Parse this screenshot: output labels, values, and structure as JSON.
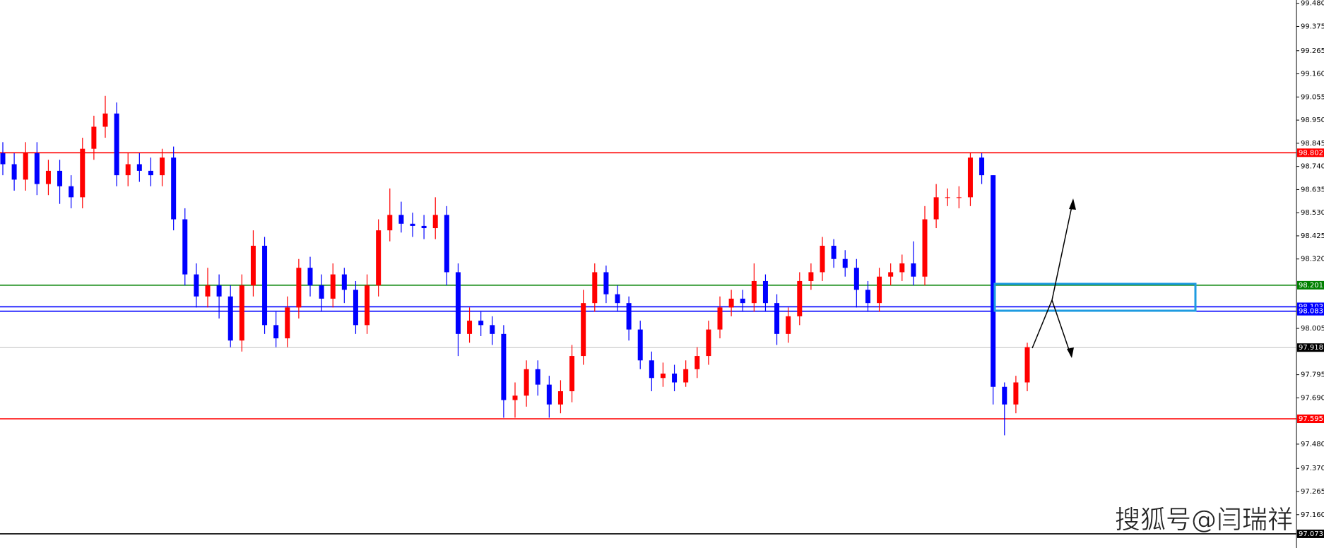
{
  "chart_data": {
    "type": "candlestick",
    "watermark": "搜狐号@闫瑞祥",
    "up_color": "#ff0000",
    "down_color": "#0000ff",
    "ylim": [
      97.06,
      99.495
    ],
    "yticks": [
      {
        "value": 99.48,
        "label": "99.480"
      },
      99.375,
      99.265,
      {
        "value": 99.16,
        "label": "99.160"
      },
      99.055,
      {
        "value": 98.95,
        "label": "98.950"
      },
      98.845,
      {
        "value": 98.74,
        "label": "98.740"
      },
      98.635,
      {
        "value": 98.53,
        "label": "98.530"
      },
      98.425,
      {
        "value": 98.32,
        "label": "98.320"
      },
      98.005,
      97.795,
      {
        "value": 97.69,
        "label": "97.690"
      },
      {
        "value": 97.48,
        "label": "97.480"
      },
      {
        "value": 97.37,
        "label": "97.370"
      },
      97.265,
      {
        "value": 97.16,
        "label": "97.160"
      }
    ],
    "levels": [
      {
        "value": 98.802,
        "color": "#ff0000"
      },
      {
        "value": 98.201,
        "color": "#008000"
      },
      {
        "value": 98.103,
        "color": "#0000ff"
      },
      {
        "value": 98.083,
        "color": "#0000ff"
      },
      {
        "value": 97.918,
        "color": "#c0c0c0"
      },
      {
        "value": 97.595,
        "color": "#ff0000"
      },
      {
        "value": 97.073,
        "color": "#000000"
      }
    ],
    "open": [
      98.8,
      98.75,
      98.68,
      98.8,
      98.66,
      98.72,
      98.65,
      98.6,
      98.82,
      98.92,
      98.98,
      98.7,
      98.75,
      98.72,
      98.7,
      98.78,
      98.5,
      98.25,
      98.15,
      98.2,
      98.15,
      97.95,
      98.2,
      98.38,
      98.02,
      97.96,
      98.1,
      98.28,
      98.2,
      98.14,
      98.25,
      98.18,
      98.02,
      98.2,
      98.45,
      98.52,
      98.48,
      98.47,
      98.46,
      98.52,
      98.26,
      97.98,
      98.04,
      98.02,
      97.98,
      97.68,
      97.7,
      97.82,
      97.75,
      97.66,
      97.72,
      97.88,
      98.12,
      98.26,
      98.16,
      98.12,
      98.0,
      97.86,
      97.78,
      97.8,
      97.76,
      97.82,
      97.88,
      98.0,
      98.1,
      98.14,
      98.12,
      98.22,
      98.12,
      97.98,
      98.06,
      98.22,
      98.26,
      98.38,
      98.32,
      98.28,
      98.18,
      98.12,
      98.24,
      98.26,
      98.3,
      98.24,
      98.5,
      98.6,
      98.6,
      98.6,
      98.78,
      98.7,
      97.74,
      97.66,
      97.76
    ],
    "high": [
      98.85,
      98.8,
      98.85,
      98.85,
      98.77,
      98.77,
      98.7,
      98.87,
      98.97,
      99.06,
      99.03,
      98.8,
      98.8,
      98.78,
      98.82,
      98.83,
      98.55,
      98.3,
      98.28,
      98.25,
      98.2,
      98.25,
      98.45,
      98.42,
      98.08,
      98.15,
      98.32,
      98.33,
      98.25,
      98.3,
      98.28,
      98.22,
      98.25,
      98.5,
      98.64,
      98.58,
      98.53,
      98.52,
      98.6,
      98.56,
      98.3,
      98.1,
      98.08,
      98.06,
      98.02,
      97.76,
      97.86,
      97.86,
      97.79,
      97.77,
      97.93,
      98.18,
      98.3,
      98.29,
      98.2,
      98.15,
      98.04,
      97.9,
      97.85,
      97.84,
      97.86,
      97.92,
      98.04,
      98.15,
      98.18,
      98.18,
      98.3,
      98.25,
      98.16,
      98.1,
      98.26,
      98.3,
      98.42,
      98.41,
      98.36,
      98.32,
      98.22,
      98.28,
      98.3,
      98.34,
      98.4,
      98.56,
      98.66,
      98.64,
      98.65,
      98.8,
      98.8,
      98.7,
      97.76,
      97.79,
      97.94
    ],
    "low": [
      98.7,
      98.63,
      98.63,
      98.61,
      98.61,
      98.57,
      98.55,
      98.55,
      98.77,
      98.87,
      98.65,
      98.65,
      98.67,
      98.65,
      98.65,
      98.45,
      98.2,
      98.1,
      98.1,
      98.05,
      97.92,
      97.9,
      98.15,
      97.98,
      97.92,
      97.92,
      98.05,
      98.15,
      98.08,
      98.1,
      98.12,
      97.98,
      97.98,
      98.15,
      98.4,
      98.44,
      98.42,
      98.41,
      98.41,
      98.2,
      97.88,
      97.94,
      97.97,
      97.93,
      97.6,
      97.6,
      97.65,
      97.7,
      97.6,
      97.62,
      97.67,
      97.84,
      98.08,
      98.12,
      98.08,
      97.95,
      97.82,
      97.72,
      97.74,
      97.72,
      97.74,
      97.78,
      97.84,
      97.96,
      98.06,
      98.08,
      98.08,
      98.08,
      97.93,
      97.94,
      98.02,
      98.18,
      98.22,
      98.28,
      98.24,
      98.1,
      98.08,
      98.08,
      98.2,
      98.22,
      98.2,
      98.2,
      98.46,
      98.56,
      98.55,
      98.56,
      98.66,
      97.66,
      97.52,
      97.62,
      97.72
    ],
    "close": [
      98.75,
      98.68,
      98.8,
      98.66,
      98.72,
      98.65,
      98.6,
      98.82,
      98.92,
      98.98,
      98.7,
      98.75,
      98.72,
      98.7,
      98.78,
      98.5,
      98.25,
      98.15,
      98.2,
      98.15,
      97.95,
      98.2,
      98.38,
      98.02,
      97.96,
      98.1,
      98.28,
      98.2,
      98.14,
      98.25,
      98.18,
      98.02,
      98.2,
      98.45,
      98.52,
      98.48,
      98.47,
      98.46,
      98.52,
      98.26,
      97.98,
      98.04,
      98.02,
      97.98,
      97.68,
      97.7,
      97.82,
      97.75,
      97.66,
      97.72,
      97.88,
      98.12,
      98.26,
      98.16,
      98.12,
      98.0,
      97.86,
      97.78,
      97.8,
      97.76,
      97.82,
      97.88,
      98.0,
      98.1,
      98.14,
      98.12,
      98.22,
      98.12,
      97.98,
      98.06,
      98.22,
      98.26,
      98.38,
      98.32,
      98.28,
      98.18,
      98.12,
      98.24,
      98.26,
      98.3,
      98.24,
      98.5,
      98.6,
      98.6,
      98.6,
      98.78,
      98.7,
      97.74,
      97.66,
      97.76,
      97.92
    ]
  }
}
